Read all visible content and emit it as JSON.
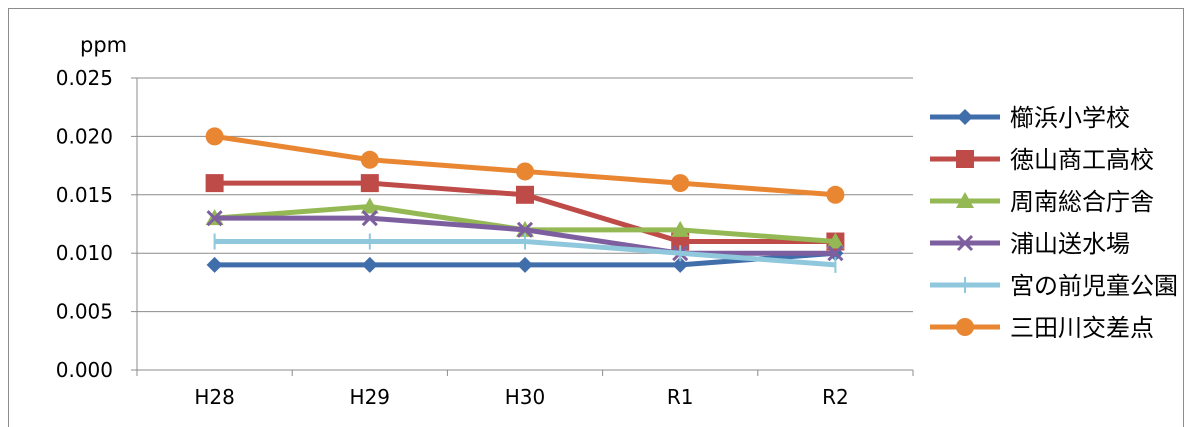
{
  "chart_data": {
    "type": "line",
    "unit_label": "ppm",
    "categories": [
      "H28",
      "H29",
      "H30",
      "R1",
      "R2"
    ],
    "ylim": [
      0,
      0.025
    ],
    "yticks": [
      "0.000",
      "0.005",
      "0.010",
      "0.015",
      "0.020",
      "0.025"
    ],
    "grid": true,
    "legend_position": "right",
    "series": [
      {
        "name": "櫛浜小学校",
        "values": [
          0.009,
          0.009,
          0.009,
          0.009,
          0.01
        ],
        "color": "#3f6eaa",
        "marker": "diamond"
      },
      {
        "name": "徳山商工高校",
        "values": [
          0.016,
          0.016,
          0.015,
          0.011,
          0.011
        ],
        "color": "#be4b48",
        "marker": "square"
      },
      {
        "name": "周南総合庁舎",
        "values": [
          0.013,
          0.014,
          0.012,
          0.012,
          0.011
        ],
        "color": "#94b954",
        "marker": "triangle"
      },
      {
        "name": "浦山送水場",
        "values": [
          0.013,
          0.013,
          0.012,
          0.01,
          0.01
        ],
        "color": "#7d5fa0",
        "marker": "x"
      },
      {
        "name": "宮の前児童公園",
        "values": [
          0.011,
          0.011,
          0.011,
          0.01,
          0.009
        ],
        "color": "#8fc7dc",
        "marker": "plus"
      },
      {
        "name": "三田川交差点",
        "values": [
          0.02,
          0.018,
          0.017,
          0.016,
          0.015
        ],
        "color": "#e88632",
        "marker": "circle"
      }
    ]
  }
}
